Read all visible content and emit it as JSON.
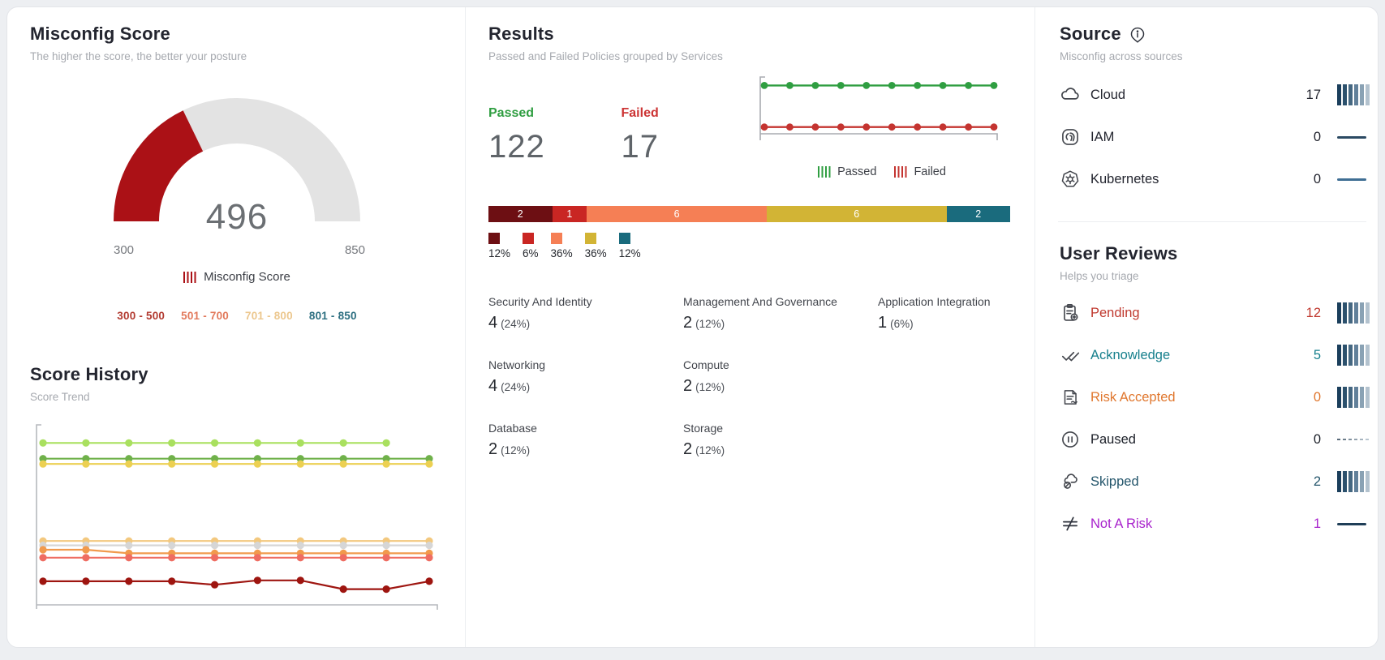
{
  "misconfig_score": {
    "title": "Misconfig Score",
    "subtitle": "The higher the score, the better your posture",
    "value": "496",
    "min_label": "300",
    "max_label": "850",
    "legend_label": "Misconfig Score"
  },
  "score_history": {
    "title": "Score History",
    "subtitle": "Score Trend"
  },
  "results": {
    "title": "Results",
    "subtitle": "Passed and Failed Policies grouped by Services",
    "passed_label": "Passed",
    "passed_value": "122",
    "passed_color": "#2f9e41",
    "failed_label": "Failed",
    "failed_value": "17",
    "failed_color": "#cc3434",
    "number_color": "#5f6469",
    "categories": [
      {
        "label": "Security And Identity",
        "value": "4",
        "pct": "(24%)"
      },
      {
        "label": "Management And Governance",
        "value": "2",
        "pct": "(12%)"
      },
      {
        "label": "Application Integration",
        "value": "1",
        "pct": "(6%)"
      },
      {
        "label": "Networking",
        "value": "4",
        "pct": "(24%)"
      },
      {
        "label": "Compute",
        "value": "2",
        "pct": "(12%)"
      },
      {
        "label": "Database",
        "value": "2",
        "pct": "(12%)"
      },
      {
        "label": "Storage",
        "value": "2",
        "pct": "(12%)"
      }
    ]
  },
  "source": {
    "title": "Source",
    "subtitle": "Misconfig across sources",
    "rows": [
      {
        "label": "Cloud",
        "count": "17",
        "icon": "cloud-icon",
        "spark": "bars",
        "color": "#23252f"
      },
      {
        "label": "IAM",
        "count": "0",
        "icon": "iam-icon",
        "spark": "line",
        "color": "#23252f",
        "line_color": "#2b4a63"
      },
      {
        "label": "Kubernetes",
        "count": "0",
        "icon": "kubernetes-icon",
        "spark": "line",
        "color": "#23252f",
        "line_color": "#3f6e94"
      }
    ]
  },
  "user_reviews": {
    "title": "User Reviews",
    "subtitle": "Helps you triage",
    "rows": [
      {
        "label": "Pending",
        "count": "12",
        "icon": "pending-icon",
        "spark": "bars",
        "color": "#c0392f"
      },
      {
        "label": "Acknowledge",
        "count": "5",
        "icon": "acknowledge-icon",
        "spark": "bars",
        "color": "#17808d"
      },
      {
        "label": "Risk Accepted",
        "count": "0",
        "icon": "risk-accepted-icon",
        "spark": "bars",
        "color": "#e0772e"
      },
      {
        "label": "Paused",
        "count": "0",
        "icon": "paused-icon",
        "spark": "dashes",
        "color": "#1c2029"
      },
      {
        "label": "Skipped",
        "count": "2",
        "icon": "skipped-icon",
        "spark": "bars",
        "color": "#23556b"
      },
      {
        "label": "Not A Risk",
        "count": "1",
        "icon": "not-a-risk-icon",
        "spark": "line",
        "color": "#a822cc",
        "line_color": "#1f3e57"
      }
    ]
  },
  "spark_bar_colors": [
    "#1b3f5c",
    "#2c516d",
    "#456781",
    "#62809a",
    "#8aa2b4",
    "#b3c2ce"
  ],
  "spark_dash_colors": [
    "#5a6b7a",
    "#6d7d8b",
    "#80909d",
    "#93a2ae",
    "#a6b4bf",
    "#b9c6d0"
  ],
  "chart_data": [
    {
      "id": "misconfig_gauge",
      "type": "gauge",
      "title": "Misconfig Score",
      "value": 496,
      "min": 300,
      "max": 850,
      "filled_color": "#ab1116",
      "track_color": "#e3e3e3",
      "legend": [
        {
          "label": "300 - 500",
          "color": "#b23a30"
        },
        {
          "label": "501 - 700",
          "color": "#e2795b"
        },
        {
          "label": "701 - 800",
          "color": "#ecc78e"
        },
        {
          "label": "801 - 850",
          "color": "#2d6f81"
        }
      ]
    },
    {
      "id": "score_history",
      "type": "line",
      "title": "Score History",
      "xlabel": "",
      "ylabel": "",
      "ylim": [
        0,
        100
      ],
      "axis_tick_labels_visible": false,
      "x": [
        1,
        2,
        3,
        4,
        5,
        6,
        7,
        8,
        9,
        10
      ],
      "series": [
        {
          "name": "series-light-green",
          "color": "#a9e05f",
          "values": [
            92,
            92,
            92,
            92,
            92,
            92,
            92,
            92,
            92
          ]
        },
        {
          "name": "series-green",
          "color": "#6fb14a",
          "values": [
            83,
            83,
            83,
            83,
            83,
            83,
            83,
            83,
            83,
            83
          ]
        },
        {
          "name": "series-yellow",
          "color": "#ecd052",
          "values": [
            80,
            80,
            80,
            80,
            80,
            80,
            80,
            80,
            80,
            80
          ]
        },
        {
          "name": "series-tan",
          "color": "#f3c87e",
          "values": [
            36,
            36,
            36,
            36,
            36,
            36,
            36,
            36,
            36,
            36
          ]
        },
        {
          "name": "series-gray",
          "color": "#d6d6d6",
          "values": [
            33.5,
            33.5,
            33.5,
            33.5,
            33.5,
            33.5,
            33.5,
            33.5,
            33.5,
            33.5
          ]
        },
        {
          "name": "series-orange",
          "color": "#f19a4d",
          "values": [
            31,
            31,
            29,
            29,
            29,
            29,
            29,
            29,
            29,
            29
          ]
        },
        {
          "name": "series-salmon",
          "color": "#ef6d62",
          "values": [
            26.5,
            26.5,
            26.5,
            26.5,
            26.5,
            26.5,
            26.5,
            26.5,
            26.5,
            26.5
          ]
        },
        {
          "name": "series-dark-red",
          "color": "#9e1510",
          "values": [
            13,
            13,
            13,
            13,
            11,
            13.5,
            13.5,
            8.5,
            8.5,
            13
          ]
        }
      ]
    },
    {
      "id": "results_trend",
      "type": "line",
      "title": "Passed and Failed trend",
      "ylim": [
        0,
        135
      ],
      "axis_tick_labels_visible": false,
      "x": [
        1,
        2,
        3,
        4,
        5,
        6,
        7,
        8,
        9,
        10
      ],
      "series": [
        {
          "name": "Passed",
          "color": "#2f9e41",
          "values": [
            122,
            122,
            122,
            122,
            122,
            122,
            122,
            122,
            122,
            122
          ]
        },
        {
          "name": "Failed",
          "color": "#c43430",
          "values": [
            17,
            17,
            17,
            17,
            17,
            17,
            17,
            17,
            17,
            17
          ]
        }
      ]
    },
    {
      "id": "results_distribution",
      "type": "bar",
      "stacked": true,
      "orientation": "horizontal",
      "title": "Failed policies distribution by service group",
      "segments": [
        {
          "value": 2,
          "pct": "12%",
          "color": "#6d0f13"
        },
        {
          "value": 1,
          "pct": "6%",
          "color": "#c92623"
        },
        {
          "value": 6,
          "pct": "36%",
          "color": "#f57f55"
        },
        {
          "value": 6,
          "pct": "36%",
          "color": "#d2b435"
        },
        {
          "value": 2,
          "pct": "12%",
          "color": "#1a6b7d"
        }
      ]
    }
  ]
}
